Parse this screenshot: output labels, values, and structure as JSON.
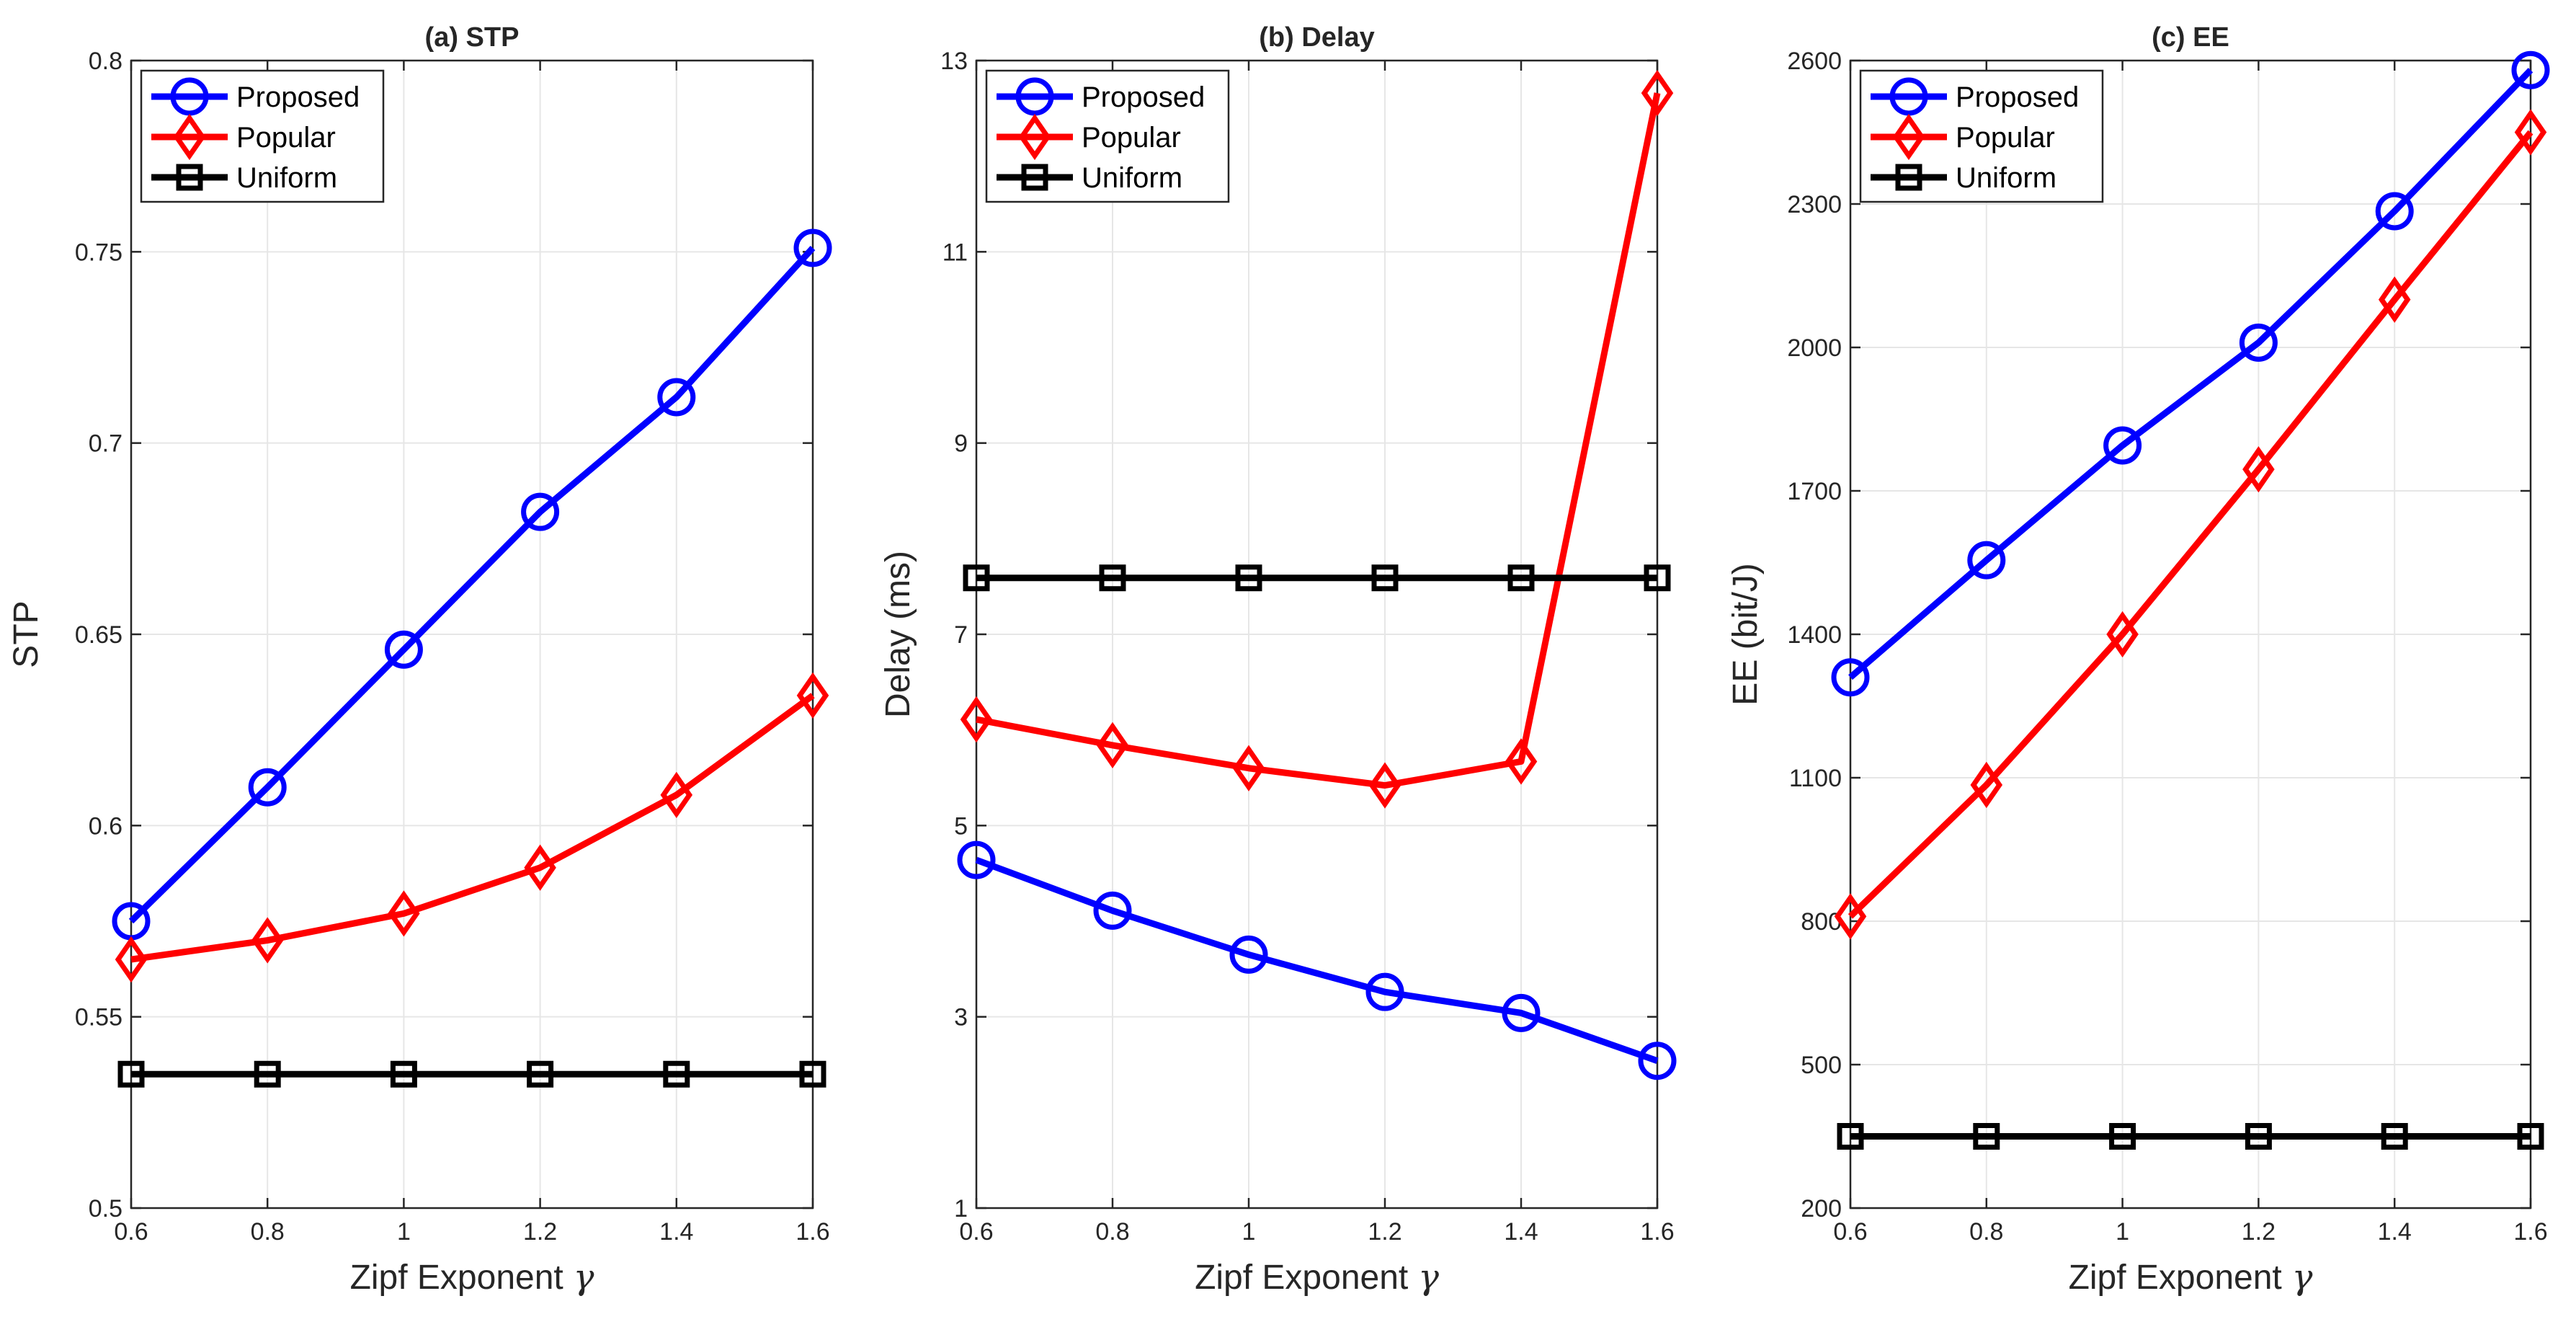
{
  "chart_data": [
    {
      "type": "line",
      "title": "(a) STP",
      "xlabel": "Zipf Exponent",
      "xlabel_symbol": "γ",
      "ylabel": "STP",
      "x": [
        0.6,
        0.8,
        1.0,
        1.2,
        1.4,
        1.6
      ],
      "xlim": [
        0.6,
        1.6
      ],
      "xticks": [
        "0.6",
        "0.8",
        "1",
        "1.2",
        "1.4",
        "1.6"
      ],
      "ylim": [
        0.5,
        0.8
      ],
      "yticks": [
        "0.5",
        "0.55",
        "0.6",
        "0.65",
        "0.7",
        "0.75",
        "0.8"
      ],
      "grid": true,
      "legend_position": "top-left",
      "series": [
        {
          "name": "Proposed",
          "color": "#0000ff",
          "marker": "circle",
          "values": [
            0.575,
            0.61,
            0.646,
            0.682,
            0.712,
            0.751
          ]
        },
        {
          "name": "Popular",
          "color": "#ff0000",
          "marker": "diamond",
          "values": [
            0.565,
            0.57,
            0.577,
            0.589,
            0.608,
            0.634
          ]
        },
        {
          "name": "Uniform",
          "color": "#000000",
          "marker": "square",
          "values": [
            0.535,
            0.535,
            0.535,
            0.535,
            0.535,
            0.535
          ]
        }
      ]
    },
    {
      "type": "line",
      "title": "(b) Delay",
      "xlabel": "Zipf Exponent",
      "xlabel_symbol": "γ",
      "ylabel": "Delay (ms)",
      "x": [
        0.6,
        0.8,
        1.0,
        1.2,
        1.4,
        1.6
      ],
      "xlim": [
        0.6,
        1.6
      ],
      "xticks": [
        "0.6",
        "0.8",
        "1",
        "1.2",
        "1.4",
        "1.6"
      ],
      "ylim": [
        1,
        13
      ],
      "yticks": [
        "1",
        "3",
        "5",
        "7",
        "9",
        "11",
        "13"
      ],
      "grid": true,
      "legend_position": "top-left",
      "series": [
        {
          "name": "Proposed",
          "color": "#0000ff",
          "marker": "circle",
          "values": [
            4.64,
            4.11,
            3.65,
            3.26,
            3.04,
            2.54
          ]
        },
        {
          "name": "Popular",
          "color": "#ff0000",
          "marker": "diamond",
          "values": [
            6.11,
            5.84,
            5.6,
            5.42,
            5.67,
            12.66
          ]
        },
        {
          "name": "Uniform",
          "color": "#000000",
          "marker": "square",
          "values": [
            7.59,
            7.59,
            7.59,
            7.59,
            7.59,
            7.59
          ]
        }
      ]
    },
    {
      "type": "line",
      "title": "(c) EE",
      "xlabel": "Zipf Exponent",
      "xlabel_symbol": "γ",
      "ylabel": "EE (bit/J)",
      "x": [
        0.6,
        0.8,
        1.0,
        1.2,
        1.4,
        1.6
      ],
      "xlim": [
        0.6,
        1.6
      ],
      "xticks": [
        "0.6",
        "0.8",
        "1",
        "1.2",
        "1.4",
        "1.6"
      ],
      "ylim": [
        200,
        2600
      ],
      "yticks": [
        "200",
        "500",
        "800",
        "1100",
        "1400",
        "1700",
        "2000",
        "2300",
        "2600"
      ],
      "grid": true,
      "legend_position": "top-left",
      "series": [
        {
          "name": "Proposed",
          "color": "#0000ff",
          "marker": "circle",
          "values": [
            1310,
            1555,
            1795,
            2010,
            2285,
            2580
          ]
        },
        {
          "name": "Popular",
          "color": "#ff0000",
          "marker": "diamond",
          "values": [
            810,
            1085,
            1400,
            1745,
            2100,
            2450
          ]
        },
        {
          "name": "Uniform",
          "color": "#000000",
          "marker": "square",
          "values": [
            350,
            350,
            350,
            350,
            350,
            350
          ]
        }
      ]
    }
  ]
}
